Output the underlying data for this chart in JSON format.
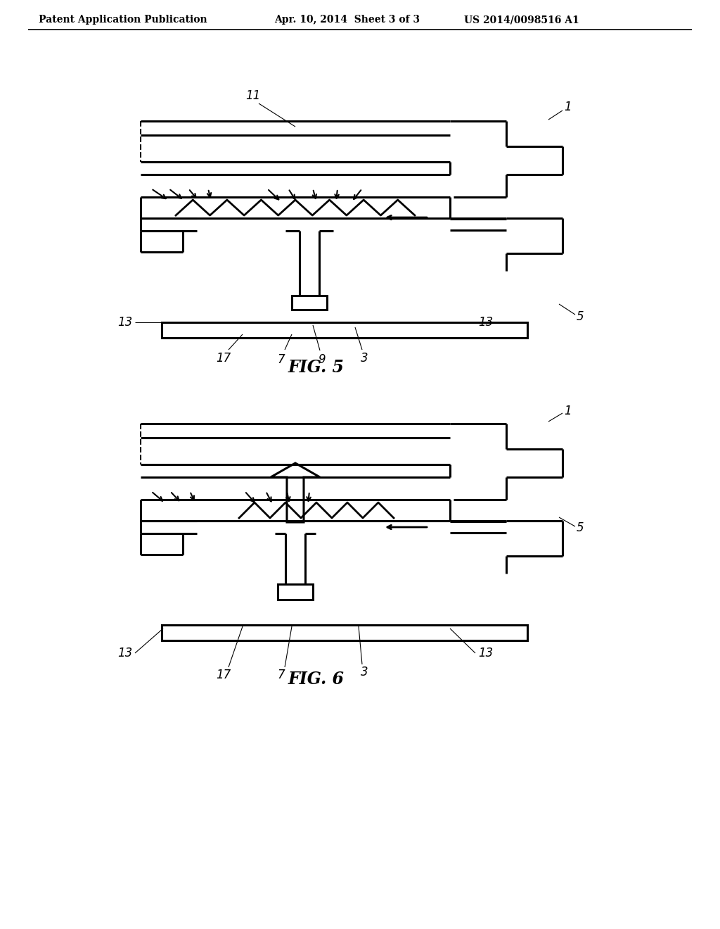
{
  "bg_color": "#ffffff",
  "header_left": "Patent Application Publication",
  "header_mid": "Apr. 10, 2014  Sheet 3 of 3",
  "header_right": "US 2014/0098516 A1",
  "fig5_label": "FIG. 5",
  "fig6_label": "FIG. 6",
  "line_color": "#000000",
  "lw": 2.2,
  "thin_lw": 1.0
}
